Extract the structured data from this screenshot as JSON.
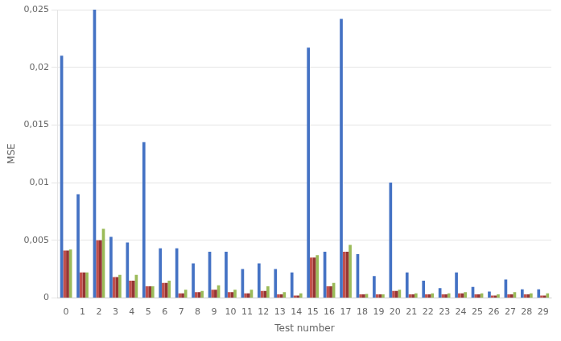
{
  "chart_data": {
    "type": "bar",
    "xlabel": "Test number",
    "ylabel": "MSE",
    "categories": [
      0,
      1,
      2,
      3,
      4,
      5,
      6,
      7,
      8,
      9,
      10,
      11,
      12,
      13,
      14,
      15,
      16,
      17,
      18,
      19,
      20,
      21,
      22,
      23,
      24,
      25,
      26,
      27,
      28,
      29
    ],
    "series": [
      {
        "color": "#4472C4",
        "values": [
          0.021,
          0.009,
          0.025,
          0.0053,
          0.0048,
          0.0135,
          0.0043,
          0.0043,
          0.003,
          0.004,
          0.004,
          0.0025,
          0.003,
          0.0025,
          0.0022,
          0.0217,
          0.004,
          0.0242,
          0.0038,
          0.0019,
          0.01,
          0.0022,
          0.0015,
          0.00085,
          0.0022,
          0.00095,
          0.00055,
          0.0016,
          0.00075,
          0.00075
        ]
      },
      {
        "color": "#C0504D",
        "values": [
          0.0041,
          0.0022,
          0.005,
          0.0018,
          0.0015,
          0.001,
          0.0013,
          0.0004,
          0.0005,
          0.0007,
          0.0005,
          0.0004,
          0.0006,
          0.0003,
          0.0002,
          0.0035,
          0.001,
          0.004,
          0.0003,
          0.0003,
          0.0006,
          0.0003,
          0.0003,
          0.0003,
          0.0004,
          0.0003,
          0.0002,
          0.0003,
          0.0003,
          0.0002
        ]
      },
      {
        "color": "#943634",
        "values": [
          0.0041,
          0.0022,
          0.005,
          0.0018,
          0.0015,
          0.001,
          0.0013,
          0.0004,
          0.0005,
          0.0007,
          0.0005,
          0.0004,
          0.0006,
          0.0003,
          0.0002,
          0.0035,
          0.001,
          0.004,
          0.0003,
          0.0003,
          0.0006,
          0.0003,
          0.0003,
          0.0003,
          0.0004,
          0.0003,
          0.0002,
          0.0003,
          0.0003,
          0.0002
        ]
      },
      {
        "color": "#9BBB59",
        "values": [
          0.0042,
          0.0022,
          0.006,
          0.002,
          0.002,
          0.001,
          0.0015,
          0.0007,
          0.0006,
          0.0011,
          0.0007,
          0.0007,
          0.001,
          0.0005,
          0.0004,
          0.0037,
          0.0013,
          0.0046,
          0.00035,
          0.0003,
          0.0007,
          0.0004,
          0.0004,
          0.0004,
          0.0005,
          0.0004,
          0.0003,
          0.0005,
          0.0004,
          0.0004
        ]
      }
    ],
    "ylim": [
      0,
      0.025
    ],
    "yticks": [
      0,
      {
        "value": 0.005,
        "label": "0,005"
      },
      {
        "value": 0.01,
        "label": "0,01"
      },
      {
        "value": 0.015,
        "label": "0,015"
      },
      {
        "value": 0.02,
        "label": "0,02"
      },
      {
        "value": 0.025,
        "label": "0,025"
      }
    ],
    "grid": true
  }
}
